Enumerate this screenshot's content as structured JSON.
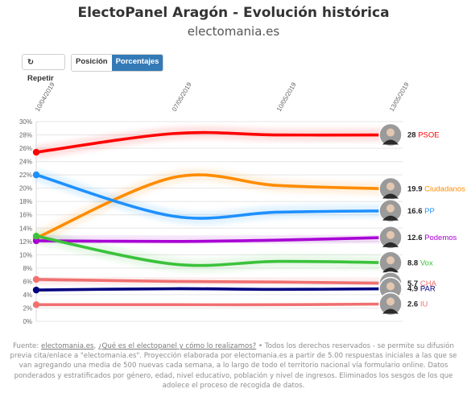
{
  "header": {
    "title": "ElectoPanel Aragón - Evolución histórica",
    "subtitle": "electomania.es"
  },
  "controls": {
    "repeat_label": "Repetir",
    "repeat_icon": "refresh-icon",
    "position_label": "Posición",
    "percent_label": "Porcentajes",
    "active": "Porcentajes"
  },
  "chart_data": {
    "type": "line",
    "x": [
      "10/04/2019",
      "07/05/2019",
      "10/05/2019",
      "13/05/2019"
    ],
    "y_ticks": [
      "0%",
      "2%",
      "4%",
      "6%",
      "8%",
      "10%",
      "12%",
      "14%",
      "16%",
      "18%",
      "20%",
      "22%",
      "24%",
      "26%",
      "28%",
      "30%"
    ],
    "ylim": [
      0,
      30
    ],
    "grid": true,
    "series": [
      {
        "name": "PSOE",
        "label": "28",
        "color": "#ff0000",
        "values": [
          25.4,
          28.2,
          28.0,
          28.0
        ]
      },
      {
        "name": "Ciudadanos",
        "label": "19.9",
        "color": "#ff8c00",
        "values": [
          12.5,
          21.6,
          20.4,
          19.9
        ]
      },
      {
        "name": "PP",
        "label": "16.6",
        "color": "#1e90ff",
        "values": [
          22.0,
          15.8,
          16.4,
          16.6
        ]
      },
      {
        "name": "Podemos",
        "label": "12.6",
        "color": "#a800d4",
        "values": [
          12.1,
          12.0,
          12.2,
          12.6
        ]
      },
      {
        "name": "Vox",
        "label": "8.8",
        "color": "#3bc23b",
        "values": [
          12.8,
          8.6,
          9.0,
          8.8
        ]
      },
      {
        "name": "CHA",
        "label": "5.7",
        "color": "#f07070",
        "values": [
          6.3,
          6.0,
          5.9,
          5.7
        ]
      },
      {
        "name": "PAR",
        "label": "4.9",
        "color": "#000080",
        "values": [
          4.7,
          4.9,
          4.8,
          4.9
        ]
      },
      {
        "name": "IU",
        "label": "2.6",
        "color": "#f07070",
        "values": [
          2.5,
          2.5,
          2.5,
          2.6
        ]
      }
    ]
  },
  "footer": {
    "prefix": "Fuente: ",
    "link1": "electomania.es",
    "sep": ", ",
    "link2": "¿Qué es el electopanel y cómo lo realizamos?",
    "text": " • Todos los derechos reservados - se permite su difusión previa cita/enlace a \"electomania.es\". Proyección elaborada por electomania.es a partir de 5.00 respuestas iniciales a las que se van agregando una media de 500 nuevas cada semana, a lo largo de todo el territorio nacional vía formulario online. Datos ponderados y estratificados por género, edad, nivel educativo, población y nivel de ingresos. Eliminados los sesgos de los que adolece el proceso de recogida de datos."
  }
}
